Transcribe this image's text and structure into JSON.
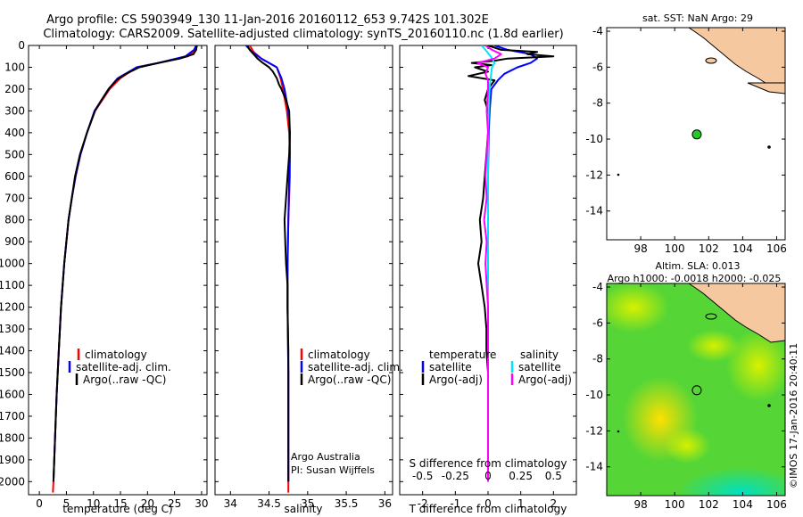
{
  "header": {
    "line1": "Argo profile: CS 5903949_130 11-Jan-2016 20160112_653 9.742S 101.302E",
    "line2": "Climatology: CARS2009. Satellite-adjusted climatology: synTS_20160110.nc (1.8d earlier)"
  },
  "colors": {
    "red": "#ff0000",
    "blue": "#0000ff",
    "black": "#000000",
    "cyan": "#00e5ff",
    "magenta": "#ff00ff",
    "land": "#f5c8a0",
    "marker": "#22cc22"
  },
  "depth_ticks": [
    "0",
    "100",
    "200",
    "300",
    "400",
    "500",
    "600",
    "700",
    "800",
    "900",
    "1000",
    "1100",
    "1200",
    "1300",
    "1400",
    "1500",
    "1600",
    "1700",
    "1800",
    "1900",
    "2000"
  ],
  "chart_data": [
    {
      "type": "line",
      "title": "",
      "xlabel": "temperature (deg C)",
      "ylabel": "",
      "xlim": [
        -2,
        31
      ],
      "ylim": [
        2060,
        0
      ],
      "xticks": [
        "0",
        "5",
        "10",
        "15",
        "20",
        "25",
        "30"
      ],
      "xtick_values": [
        0,
        5,
        10,
        15,
        20,
        25,
        30
      ],
      "legend": [
        "climatology",
        "satellite-adj. clim.",
        "Argo(..raw -QC)"
      ],
      "series": [
        {
          "name": "climatology",
          "color": "red",
          "depth": [
            0,
            20,
            50,
            80,
            100,
            150,
            200,
            300,
            400,
            500,
            600,
            700,
            800,
            900,
            1000,
            1200,
            1400,
            1600,
            1800,
            2000,
            2050
          ],
          "values": [
            29.2,
            28.8,
            27.5,
            22,
            18,
            15,
            13,
            10.3,
            8.8,
            7.6,
            6.7,
            6,
            5.4,
            5,
            4.6,
            4,
            3.6,
            3.2,
            2.9,
            2.6,
            2.5
          ]
        },
        {
          "name": "satellite-adj. clim.",
          "color": "blue",
          "depth": [
            0,
            20,
            50,
            80,
            100,
            150,
            200,
            300,
            400,
            500,
            600,
            700,
            800,
            900,
            1000,
            1200,
            1400,
            1600,
            1800,
            2000
          ],
          "values": [
            29,
            28.6,
            27,
            22,
            18,
            14.5,
            12.8,
            10.2,
            8.8,
            7.6,
            6.7,
            6,
            5.4,
            5,
            4.6,
            4,
            3.6,
            3.2,
            2.9,
            2.6
          ]
        },
        {
          "name": "Argo(..raw -QC)",
          "color": "black",
          "depth": [
            0,
            20,
            40,
            60,
            80,
            100,
            130,
            160,
            200,
            250,
            300,
            400,
            500,
            600,
            800,
            1000,
            1200,
            1400,
            1600,
            1800,
            2000
          ],
          "values": [
            29.1,
            29,
            28.5,
            26,
            22,
            18.5,
            16,
            14.2,
            12.8,
            11.5,
            10.3,
            8.8,
            7.5,
            6.6,
            5.4,
            4.6,
            4,
            3.6,
            3.2,
            2.9,
            2.6
          ]
        }
      ]
    },
    {
      "type": "line",
      "xlabel": "salinity",
      "xlim": [
        33.8,
        36.1
      ],
      "ylim": [
        2060,
        0
      ],
      "xticks": [
        "34",
        "34.5",
        "35",
        "35.5",
        "36"
      ],
      "xtick_values": [
        34,
        34.5,
        35,
        35.5,
        36
      ],
      "legend": [
        "climatology",
        "satellite-adj. clim.",
        "Argo(..raw -QC)"
      ],
      "annotation": [
        "Argo Australia",
        "PI: Susan Wijffels"
      ],
      "series": [
        {
          "name": "climatology",
          "color": "red",
          "depth": [
            0,
            30,
            60,
            100,
            150,
            200,
            300,
            400,
            500,
            600,
            800,
            1000,
            1200,
            1500,
            1800,
            2000,
            2050
          ],
          "values": [
            34.25,
            34.3,
            34.4,
            34.6,
            34.65,
            34.68,
            34.73,
            34.76,
            34.77,
            34.77,
            34.75,
            34.74,
            34.74,
            34.75,
            34.75,
            34.75,
            34.75
          ]
        },
        {
          "name": "satellite-adj. clim.",
          "color": "blue",
          "depth": [
            0,
            30,
            60,
            100,
            150,
            200,
            300,
            400,
            500,
            600,
            800,
            1000,
            1200,
            1500,
            1800,
            2000
          ],
          "values": [
            34.2,
            34.28,
            34.4,
            34.6,
            34.66,
            34.7,
            34.75,
            34.77,
            34.77,
            34.76,
            34.75,
            34.74,
            34.74,
            34.75,
            34.75,
            34.75
          ]
        },
        {
          "name": "Argo(..raw -QC)",
          "color": "black",
          "depth": [
            0,
            20,
            40,
            60,
            80,
            100,
            120,
            150,
            180,
            200,
            250,
            300,
            400,
            500,
            600,
            700,
            800,
            900,
            1000,
            1100,
            1200,
            1400,
            1600,
            1800,
            2000
          ],
          "values": [
            34.22,
            34.25,
            34.3,
            34.35,
            34.42,
            34.5,
            34.55,
            34.6,
            34.63,
            34.66,
            34.72,
            34.76,
            34.77,
            34.76,
            34.74,
            34.72,
            34.7,
            34.71,
            34.72,
            34.74,
            34.74,
            34.75,
            34.75,
            34.75,
            34.75
          ]
        }
      ]
    },
    {
      "type": "line",
      "xlabel": "T difference from climatology",
      "xlabel_top": "S difference from climatology",
      "xlim": [
        -2.7,
        2.7
      ],
      "ylim": [
        2060,
        0
      ],
      "xticks": [
        "-2",
        "-1",
        "0",
        "1",
        "2"
      ],
      "xtick_values": [
        -2,
        -1,
        0,
        1,
        2
      ],
      "sticks": [
        "-0.5",
        "-0.25",
        "0",
        "0.25",
        "0.5"
      ],
      "stick_values": [
        -0.5,
        -0.25,
        0,
        0.25,
        0.5
      ],
      "s_scale": 4,
      "legend_temperature": {
        "title": "temperature",
        "items": [
          "satellite",
          "Argo(-adj)"
        ]
      },
      "legend_salinity": {
        "title": "salinity",
        "items": [
          "satellite",
          "Argo(-adj)"
        ]
      },
      "series": [
        {
          "name": "T satellite",
          "color": "blue",
          "depth": [
            0,
            20,
            40,
            60,
            80,
            100,
            130,
            160,
            200,
            300,
            400,
            600,
            800,
            1000,
            1500,
            2000
          ],
          "values": [
            0.2,
            0.6,
            1.3,
            1.5,
            1.3,
            0.9,
            0.5,
            0.3,
            0.1,
            0.05,
            0.02,
            0,
            0,
            0,
            0,
            0
          ]
        },
        {
          "name": "T Argo(-adj)",
          "color": "black",
          "depth": [
            0,
            20,
            30,
            40,
            50,
            60,
            70,
            80,
            90,
            100,
            120,
            140,
            160,
            200,
            250,
            300,
            400,
            500,
            600,
            700,
            800,
            900,
            1000,
            1100,
            1200,
            1300,
            1400,
            1500,
            1600,
            1800,
            2000
          ],
          "values": [
            0,
            0.4,
            1.5,
            1.2,
            2.0,
            0.6,
            0.2,
            -0.5,
            0.1,
            -0.4,
            0,
            -0.6,
            0.2,
            0,
            -0.1,
            0,
            0,
            -0.05,
            -0.1,
            -0.15,
            -0.25,
            -0.2,
            -0.3,
            -0.2,
            -0.1,
            -0.05,
            -0.05,
            0,
            0,
            0,
            0
          ]
        },
        {
          "name": "S satellite",
          "color": "cyan",
          "depth": [
            0,
            20,
            50,
            80,
            100,
            150,
            200,
            300,
            400,
            600,
            800,
            1000,
            1500,
            2000
          ],
          "values": [
            -0.05,
            -0.02,
            0.02,
            0.05,
            0.03,
            0.02,
            0.01,
            0.005,
            0,
            0,
            0,
            0,
            0,
            0
          ]
        },
        {
          "name": "S Argo(-adj)",
          "color": "magenta",
          "depth": [
            0,
            20,
            40,
            60,
            80,
            100,
            130,
            160,
            200,
            300,
            400,
            500,
            600,
            700,
            800,
            900,
            1000,
            1100,
            1200,
            1400,
            1600,
            1800,
            2000
          ],
          "values": [
            -0.02,
            0.03,
            0.1,
            0.05,
            -0.08,
            0,
            -0.02,
            0,
            0,
            -0.01,
            0,
            -0.01,
            -0.02,
            -0.01,
            -0.03,
            -0.01,
            -0.02,
            -0.01,
            0,
            0,
            0,
            0,
            0
          ]
        }
      ]
    },
    {
      "type": "scatter",
      "title": "sat. SST: NaN Argo: 29",
      "xlim": [
        96,
        106.5
      ],
      "ylim": [
        -15.6,
        -3.8
      ],
      "xticks": [
        "98",
        "100",
        "102",
        "104",
        "106"
      ],
      "xtick_values": [
        98,
        100,
        102,
        104,
        106
      ],
      "yticks": [
        "-4",
        "-6",
        "-8",
        "-10",
        "-12",
        "-14"
      ],
      "ytick_values": [
        -4,
        -6,
        -8,
        -10,
        -12,
        -14
      ],
      "x": [
        101.3
      ],
      "y": [
        -9.74
      ]
    },
    {
      "type": "heatmap",
      "title": "Altim. SLA: 0.013",
      "subtitle": "Argo h1000: -0.0018 h2000: -0.025",
      "xlim": [
        96,
        106.5
      ],
      "ylim": [
        -15.6,
        -3.8
      ],
      "xticks": [
        "98",
        "100",
        "102",
        "104",
        "106"
      ],
      "xtick_values": [
        98,
        100,
        102,
        104,
        106
      ],
      "yticks": [
        "-4",
        "-6",
        "-8",
        "-10",
        "-12",
        "-14"
      ],
      "ytick_values": [
        -4,
        -6,
        -8,
        -10,
        -12,
        -14
      ],
      "x": [
        101.3
      ],
      "y": [
        -9.74
      ]
    }
  ],
  "credit": "©IMOS 17-Jan-2016 20:40:11"
}
